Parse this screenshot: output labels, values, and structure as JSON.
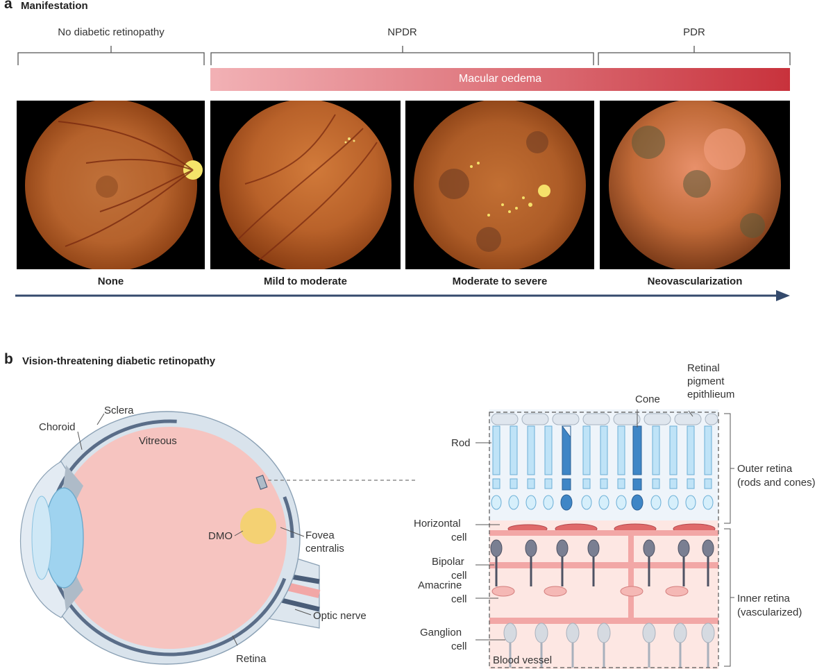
{
  "panel_a": {
    "letter": "a",
    "title": "Manifestation",
    "stages": [
      {
        "label": "No diabetic retinopathy"
      },
      {
        "label": "NPDR"
      },
      {
        "label": "PDR"
      }
    ],
    "macular_bar": "Macular oedema",
    "severities": [
      "None",
      "Mild to moderate",
      "Moderate to severe",
      "Neovascularization"
    ],
    "colors": {
      "bar_start": "#f3b3b6",
      "bar_end": "#c8303a",
      "arrow": "#344a6c"
    }
  },
  "panel_b": {
    "letter": "b",
    "title": "Vision-threatening diabetic retinopathy",
    "eye_labels": {
      "sclera": "Sclera",
      "choroid": "Choroid",
      "vitreous": "Vitreous",
      "dmo": "DMO",
      "fovea_line1": "Fovea",
      "fovea_line2": "centralis",
      "optic_nerve": "Optic nerve",
      "retina": "Retina"
    },
    "retina_labels": {
      "rpe_line1": "Retinal",
      "rpe_line2": "pigment",
      "rpe_line3": "epithlieum",
      "cone": "Cone",
      "rod": "Rod",
      "horizontal_line1": "Horizontal",
      "horizontal_line2": "cell",
      "bipolar_line1": "Bipolar",
      "bipolar_line2": "cell",
      "amacrine_line1": "Amacrine",
      "amacrine_line2": "cell",
      "ganglion_line1": "Ganglion",
      "ganglion_line2": "cell",
      "blood_vessel": "Blood vessel",
      "outer_line1": "Outer retina",
      "outer_line2": "(rods and cones)",
      "inner_line1": "Inner retina",
      "inner_line2": "(vascularized)"
    }
  }
}
